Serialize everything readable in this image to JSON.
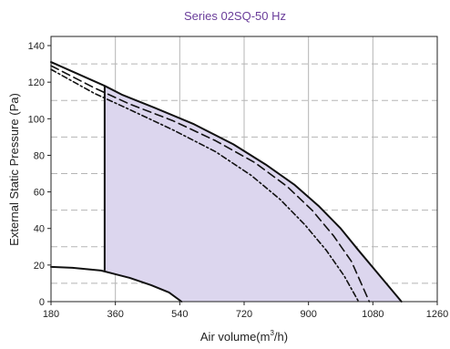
{
  "chart_data": {
    "type": "line",
    "title": "Series 02SQ-50 Hz",
    "xlabel_main": "Air volume(m",
    "xlabel_sup": "3",
    "xlabel_end": "/h)",
    "ylabel": "External Static Pressure (Pa)",
    "xlim": [
      180,
      1260
    ],
    "ylim": [
      0,
      145
    ],
    "xticks": [
      180,
      360,
      540,
      720,
      900,
      1080,
      1260
    ],
    "yticks": [
      0,
      20,
      40,
      60,
      80,
      100,
      120,
      140
    ],
    "xtick_labels": [
      "180",
      "360",
      "540",
      "720",
      "900",
      "1080",
      "1260"
    ],
    "ytick_labels": [
      "0",
      "20",
      "40",
      "60",
      "80",
      "100",
      "120",
      "140"
    ],
    "grid": {
      "vertical": "solid",
      "horizontal_minor": "dashed"
    },
    "fill_color": "#dcd6ee",
    "line_color": "#111111",
    "series": [
      {
        "style": "solid",
        "x": [
          180,
          330,
          380,
          470,
          580,
          690,
          780,
          860,
          930,
          990,
          1040,
          1100,
          1160
        ],
        "y": [
          131,
          118,
          113,
          106,
          97,
          86,
          75,
          64,
          52,
          40,
          28,
          14,
          0
        ]
      },
      {
        "style": "dashed",
        "x": [
          180,
          300,
          400,
          520,
          640,
          750,
          840,
          910,
          970,
          1020,
          1070
        ],
        "y": [
          129,
          117,
          108,
          99,
          88,
          76,
          63,
          50,
          36,
          22,
          0
        ]
      },
      {
        "style": "dashdot",
        "x": [
          180,
          300,
          400,
          520,
          640,
          740,
          820,
          890,
          950,
          1000,
          1040
        ],
        "y": [
          127,
          114,
          105,
          94,
          82,
          69,
          56,
          42,
          28,
          14,
          0
        ]
      },
      {
        "style": "solid",
        "x": [
          180,
          240,
          320,
          400,
          460,
          510,
          545
        ],
        "y": [
          19,
          18.5,
          17,
          13,
          9,
          5,
          0
        ]
      }
    ],
    "operating_limit": {
      "x": 330,
      "y_bottom": 17,
      "y_top": 118
    }
  }
}
